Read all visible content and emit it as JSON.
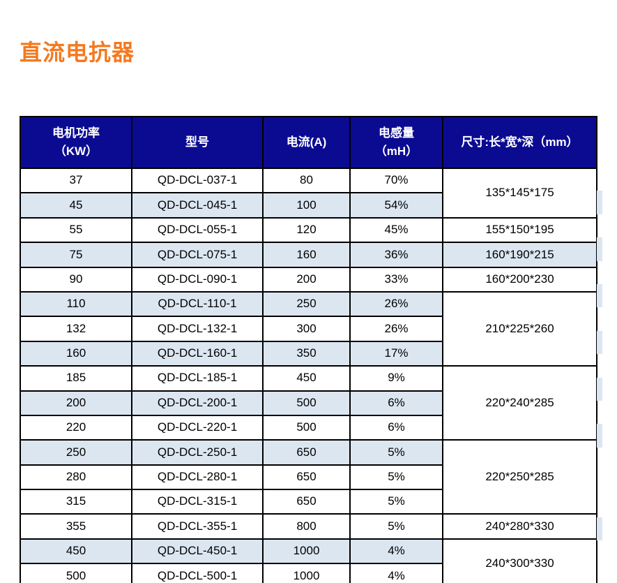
{
  "page": {
    "title": "直流电抗器"
  },
  "theme": {
    "title_color": "#F4791F",
    "header_bg": "#0B0B92",
    "header_text": "#FFFFFF",
    "stripe_color": "#DCE6F1",
    "border_color": "#000000",
    "text_color": "#000000"
  },
  "table": {
    "columns": [
      {
        "id": "power",
        "label": "电机功率\n（KW）"
      },
      {
        "id": "model",
        "label": "型号"
      },
      {
        "id": "current",
        "label": "电流(A)"
      },
      {
        "id": "inductance",
        "label": "电感量\n（mH）"
      },
      {
        "id": "size",
        "label": "尺寸:长*宽*深（mm）"
      }
    ],
    "rows": [
      {
        "power": "37",
        "model": "QD-DCL-037-1",
        "current": "80",
        "inductance": "70%",
        "striped": false,
        "size": {
          "text": "135*145*175",
          "rowspan": 2
        }
      },
      {
        "power": "45",
        "model": "QD-DCL-045-1",
        "current": "100",
        "inductance": "54%",
        "striped": true
      },
      {
        "power": "55",
        "model": "QD-DCL-055-1",
        "current": "120",
        "inductance": "45%",
        "striped": false,
        "size": {
          "text": "155*150*195",
          "rowspan": 1
        }
      },
      {
        "power": "75",
        "model": "QD-DCL-075-1",
        "current": "160",
        "inductance": "36%",
        "striped": true,
        "size": {
          "text": "160*190*215",
          "rowspan": 1
        }
      },
      {
        "power": "90",
        "model": "QD-DCL-090-1",
        "current": "200",
        "inductance": "33%",
        "striped": false,
        "size": {
          "text": "160*200*230",
          "rowspan": 1
        }
      },
      {
        "power": "110",
        "model": "QD-DCL-110-1",
        "current": "250",
        "inductance": "26%",
        "striped": true,
        "size": {
          "text": "210*225*260",
          "rowspan": 3
        }
      },
      {
        "power": "132",
        "model": "QD-DCL-132-1",
        "current": "300",
        "inductance": "26%",
        "striped": false
      },
      {
        "power": "160",
        "model": "QD-DCL-160-1",
        "current": "350",
        "inductance": "17%",
        "striped": true
      },
      {
        "power": "185",
        "model": "QD-DCL-185-1",
        "current": "450",
        "inductance": "9%",
        "striped": false,
        "size": {
          "text": "220*240*285",
          "rowspan": 3
        }
      },
      {
        "power": "200",
        "model": "QD-DCL-200-1",
        "current": "500",
        "inductance": "6%",
        "striped": true
      },
      {
        "power": "220",
        "model": "QD-DCL-220-1",
        "current": "500",
        "inductance": "6%",
        "striped": false
      },
      {
        "power": "250",
        "model": "QD-DCL-250-1",
        "current": "650",
        "inductance": "5%",
        "striped": true,
        "size": {
          "text": "220*250*285",
          "rowspan": 3
        }
      },
      {
        "power": "280",
        "model": "QD-DCL-280-1",
        "current": "650",
        "inductance": "5%",
        "striped": false
      },
      {
        "power": "315",
        "model": "QD-DCL-315-1",
        "current": "650",
        "inductance": "5%",
        "striped": false
      },
      {
        "power": "355",
        "model": "QD-DCL-355-1",
        "current": "800",
        "inductance": "5%",
        "striped": false,
        "size": {
          "text": "240*280*330",
          "rowspan": 1
        }
      },
      {
        "power": "450",
        "model": "QD-DCL-450-1",
        "current": "1000",
        "inductance": "4%",
        "striped": true,
        "size": {
          "text": "240*300*330",
          "rowspan": 2
        }
      },
      {
        "power": "500",
        "model": "QD-DCL-500-1",
        "current": "1000",
        "inductance": "4%",
        "striped": false
      }
    ]
  }
}
